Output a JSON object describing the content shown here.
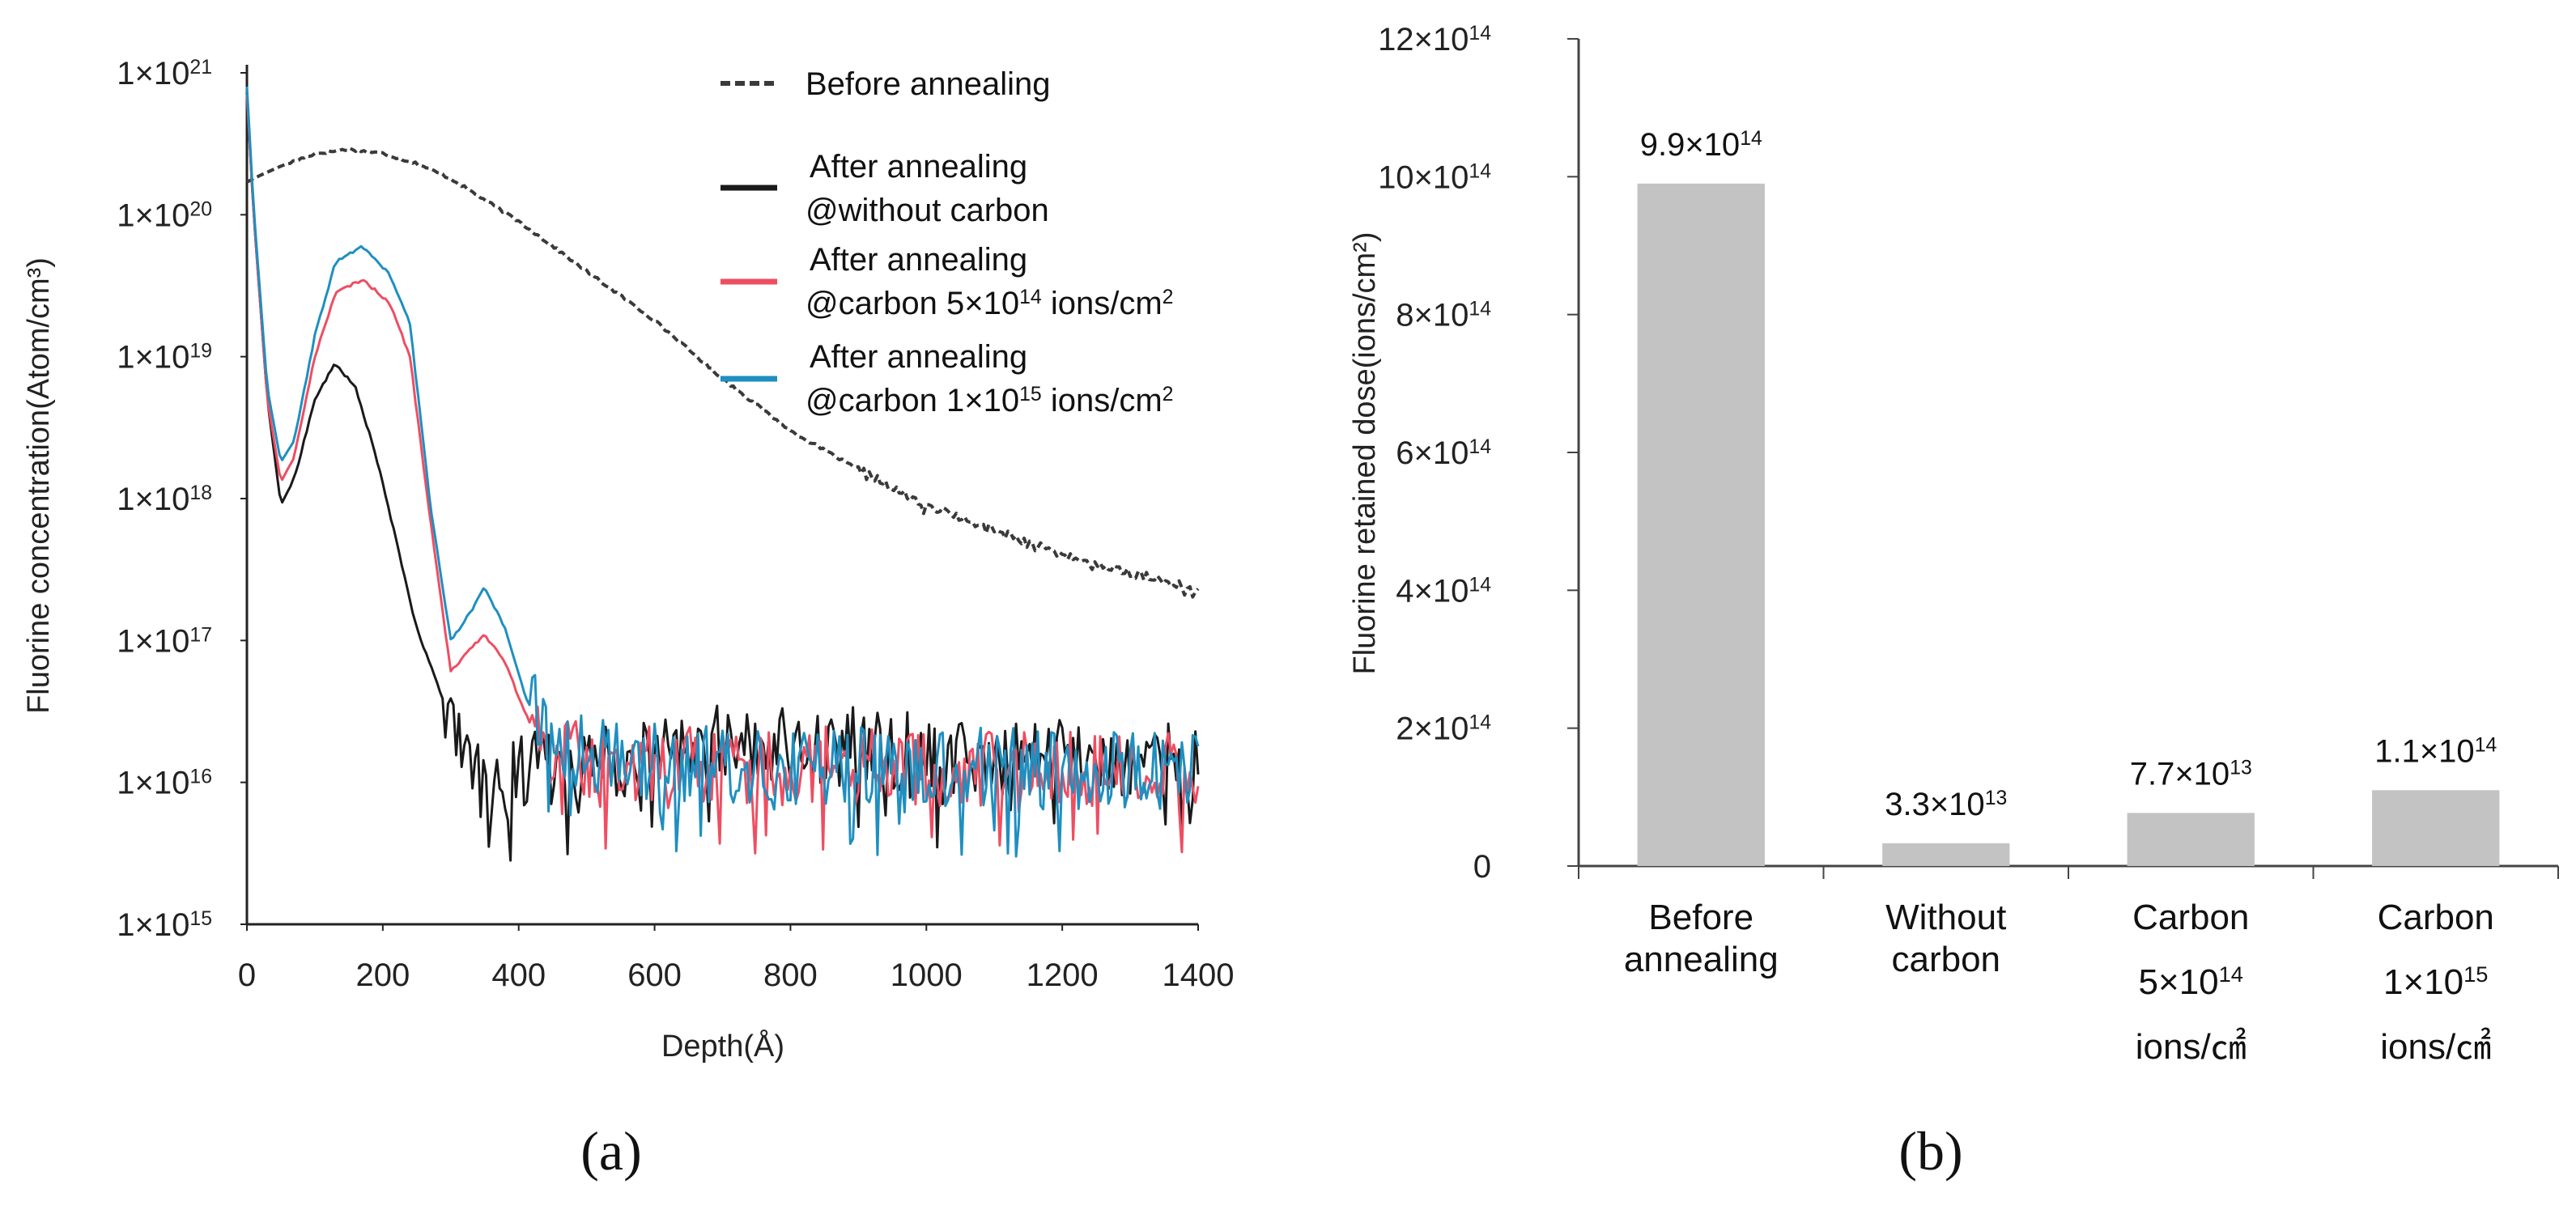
{
  "chart_data": [
    {
      "type": "line",
      "panel_label": "(a)",
      "xlabel": "Depth(Å)",
      "ylabel": "Fluorine concentration(Atom/cm³)",
      "xlim": [
        0,
        1400
      ],
      "ylim": [
        1000000000000000.0,
        1e+21
      ],
      "yscale": "log",
      "xticks": [
        0,
        200,
        400,
        600,
        800,
        1000,
        1200,
        1400
      ],
      "x_tick_labels": [
        "0",
        "200",
        "400",
        "600",
        "800",
        "1000",
        "1200",
        "1400"
      ],
      "y_tick_labels": [
        {
          "mant": "1×10",
          "exp": "21",
          "value": 1e+21
        },
        {
          "mant": "1×10",
          "exp": "20",
          "value": 1e+20
        },
        {
          "mant": "1×10",
          "exp": "19",
          "value": 1e+19
        },
        {
          "mant": "1×10",
          "exp": "18",
          "value": 1e+18
        },
        {
          "mant": "1×10",
          "exp": "17",
          "value": 1e+17
        },
        {
          "mant": "1×10",
          "exp": "16",
          "value": 1e+16
        },
        {
          "mant": "1×10",
          "exp": "15",
          "value": 1000000000000000.0
        }
      ],
      "legend": [
        {
          "lines": [
            "Before annealing"
          ],
          "color": "#3a3a3a",
          "dashed": true
        },
        {
          "lines": [
            "After annealing",
            "@without carbon"
          ],
          "color": "#1a1a1a",
          "dashed": false
        },
        {
          "lines": [
            "After annealing",
            "@carbon 5×10^14 ions/cm^2"
          ],
          "color": "#ee4e62",
          "dashed": false
        },
        {
          "lines": [
            "After annealing",
            "@carbon 1×10^15 ions/cm^2"
          ],
          "color": "#1f8fc0",
          "dashed": false
        }
      ],
      "series": [
        {
          "name": "Before annealing",
          "color": "#3a3a3a",
          "dashed": true,
          "noise": 0.03,
          "noise_from": 900,
          "x": [
            0,
            20,
            50,
            100,
            150,
            200,
            250,
            300,
            400,
            500,
            600,
            700,
            800,
            900,
            1000,
            1100,
            1200,
            1300,
            1400
          ],
          "y": [
            1.7e+20,
            1.9e+20,
            2.2e+20,
            2.7e+20,
            2.9e+20,
            2.7e+20,
            2.3e+20,
            1.8e+20,
            9e+19,
            4e+19,
            1.8e+19,
            7e+18,
            3e+18,
            1.6e+18,
            9e+17,
            6e+17,
            4e+17,
            3e+17,
            2.3e+17
          ]
        },
        {
          "name": "After annealing @without carbon",
          "color": "#1a1a1a",
          "dashed": false,
          "noise": 0.28,
          "noise_from": 290,
          "x": [
            0,
            10,
            30,
            50,
            70,
            100,
            130,
            160,
            190,
            220,
            250,
            280,
            320,
            360,
            400,
            500,
            600,
            700,
            800,
            900,
            1000,
            1100,
            1200,
            1300,
            1400
          ],
          "y": [
            7e+20,
            1e+20,
            5e+18,
            9e+17,
            1.4e+18,
            5e+18,
            9e+18,
            6e+18,
            2e+18,
            5e+17,
            1.2e+17,
            5e+16,
            1.5e+16,
            1e+16,
            1.2e+16,
            1.5e+16,
            1.5e+16,
            2e+16,
            1.8e+16,
            1.8e+16,
            1.6e+16,
            1.5e+16,
            1.6e+16,
            1.5e+16,
            1.4e+16
          ]
        },
        {
          "name": "After annealing @carbon 5×10^14 ions/cm^2",
          "color": "#ee4e62",
          "dashed": false,
          "noise": 0.28,
          "noise_from": 420,
          "x": [
            0,
            10,
            30,
            50,
            70,
            100,
            130,
            170,
            210,
            240,
            270,
            300,
            330,
            350,
            380,
            410,
            450,
            500,
            600,
            700,
            800,
            900,
            1000,
            1100,
            1200,
            1300,
            1400
          ],
          "y": [
            7e+20,
            1e+20,
            5e+18,
            1.3e+18,
            2e+18,
            1e+19,
            2.8e+19,
            3.5e+19,
            2.4e+19,
            1e+19,
            7e+17,
            6e+16,
            9e+16,
            1.1e+17,
            7e+16,
            3e+16,
            1.5e+16,
            1.5e+16,
            1.4e+16,
            1.3e+16,
            1.3e+16,
            1.3e+16,
            1.3e+16,
            1.3e+16,
            1.3e+16,
            1.2e+16,
            1.2e+16
          ]
        },
        {
          "name": "After annealing @carbon 1×10^15 ions/cm^2",
          "color": "#1f8fc0",
          "dashed": false,
          "noise": 0.28,
          "noise_from": 420,
          "x": [
            0,
            10,
            30,
            50,
            70,
            100,
            130,
            170,
            210,
            240,
            270,
            300,
            330,
            350,
            380,
            410,
            450,
            500,
            600,
            700,
            800,
            900,
            1000,
            1100,
            1200,
            1300,
            1400
          ],
          "y": [
            8e+20,
            1.1e+20,
            6e+18,
            1.8e+18,
            2.6e+18,
            1.4e+19,
            4.6e+19,
            6e+19,
            3.8e+19,
            1.7e+19,
            9e+17,
            1e+17,
            1.6e+17,
            2.4e+17,
            1.2e+17,
            4e+16,
            1.8e+16,
            1.6e+16,
            1.4e+16,
            1.3e+16,
            1.3e+16,
            1.3e+16,
            1.3e+16,
            1.3e+16,
            1.2e+16,
            1.2e+16,
            1.2e+16
          ]
        }
      ]
    },
    {
      "type": "bar",
      "panel_label": "(b)",
      "ylabel": "Fluorine retained dose(ions/cm²)",
      "ylim": [
        0,
        1200000000000000.0
      ],
      "yticks": [
        {
          "value": 0,
          "mant": "0",
          "exp": ""
        },
        {
          "value": 200000000000000.0,
          "mant": "2×10",
          "exp": "14"
        },
        {
          "value": 400000000000000.0,
          "mant": "4×10",
          "exp": "14"
        },
        {
          "value": 600000000000000.0,
          "mant": "6×10",
          "exp": "14"
        },
        {
          "value": 800000000000000.0,
          "mant": "8×10",
          "exp": "14"
        },
        {
          "value": 1000000000000000.0,
          "mant": "10×10",
          "exp": "14"
        },
        {
          "value": 1200000000000000.0,
          "mant": "12×10",
          "exp": "14"
        }
      ],
      "bar_color": "#c3c3c3",
      "categories": [
        {
          "lines": [
            "Before",
            "annealing"
          ]
        },
        {
          "lines": [
            "Without",
            "carbon"
          ]
        },
        {
          "lines": [
            "Carbon",
            "5×10^14",
            "ions/㎠"
          ]
        },
        {
          "lines": [
            "Carbon",
            "1×10^15",
            "ions/㎠"
          ]
        }
      ],
      "values": [
        990000000000000.0,
        33000000000000.0,
        77000000000000.0,
        110000000000000.0
      ],
      "data_labels": [
        {
          "mant": "9.9×10",
          "exp": "14"
        },
        {
          "mant": "3.3×10",
          "exp": "13"
        },
        {
          "mant": "7.7×10",
          "exp": "13"
        },
        {
          "mant": "1.1×10",
          "exp": "14"
        }
      ]
    }
  ]
}
